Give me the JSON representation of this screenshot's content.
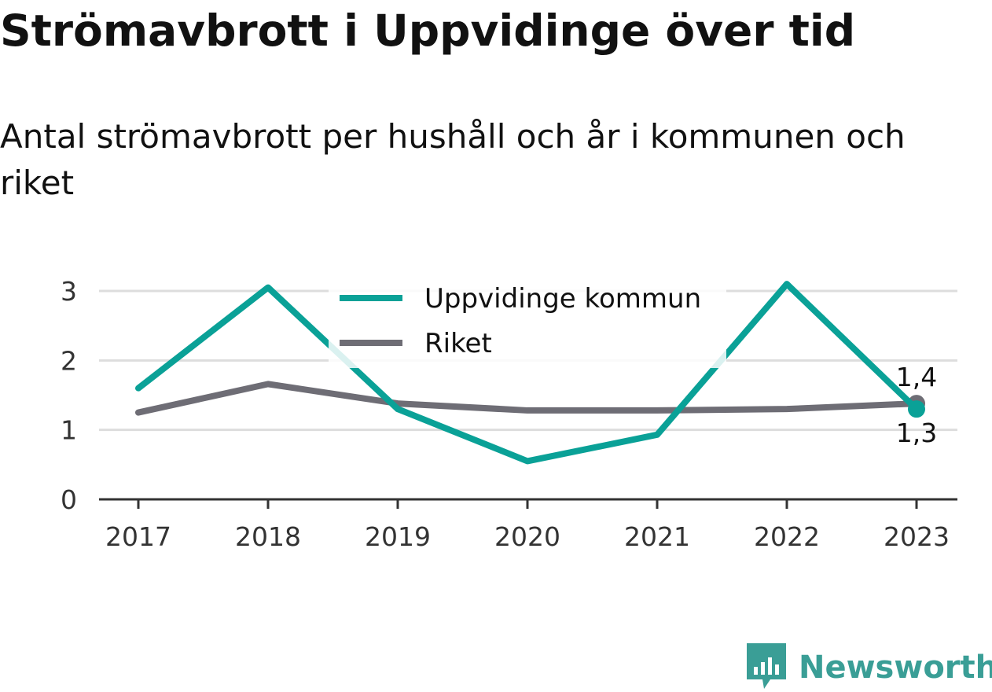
{
  "title": "Strömavbrott i Uppvidinge över tid",
  "subtitle": "Antal strömavbrott per hushåll och år i kommunen och riket",
  "brand": {
    "name": "Newsworthy",
    "logo_icon": "bar-chart-speech-bubble-icon"
  },
  "colors": {
    "kommun": "#0aa197",
    "riket": "#6e6d75",
    "grid": "#dddddd",
    "axis": "#333333",
    "brand": "#3a9e96"
  },
  "chart_data": {
    "type": "line",
    "categories": [
      "2017",
      "2018",
      "2019",
      "2020",
      "2021",
      "2022",
      "2023"
    ],
    "ylim": [
      0,
      3
    ],
    "yticks": [
      "0",
      "1",
      "2",
      "3"
    ],
    "grid": true,
    "legend_position": "top-center",
    "series": [
      {
        "name": "Uppvidinge kommun",
        "values": [
          1.6,
          3.05,
          1.3,
          0.55,
          0.93,
          3.1,
          1.3
        ],
        "end_label": "1,3"
      },
      {
        "name": "Riket",
        "values": [
          1.25,
          1.66,
          1.38,
          1.28,
          1.28,
          1.3,
          1.38
        ],
        "end_label": "1,4"
      }
    ]
  }
}
